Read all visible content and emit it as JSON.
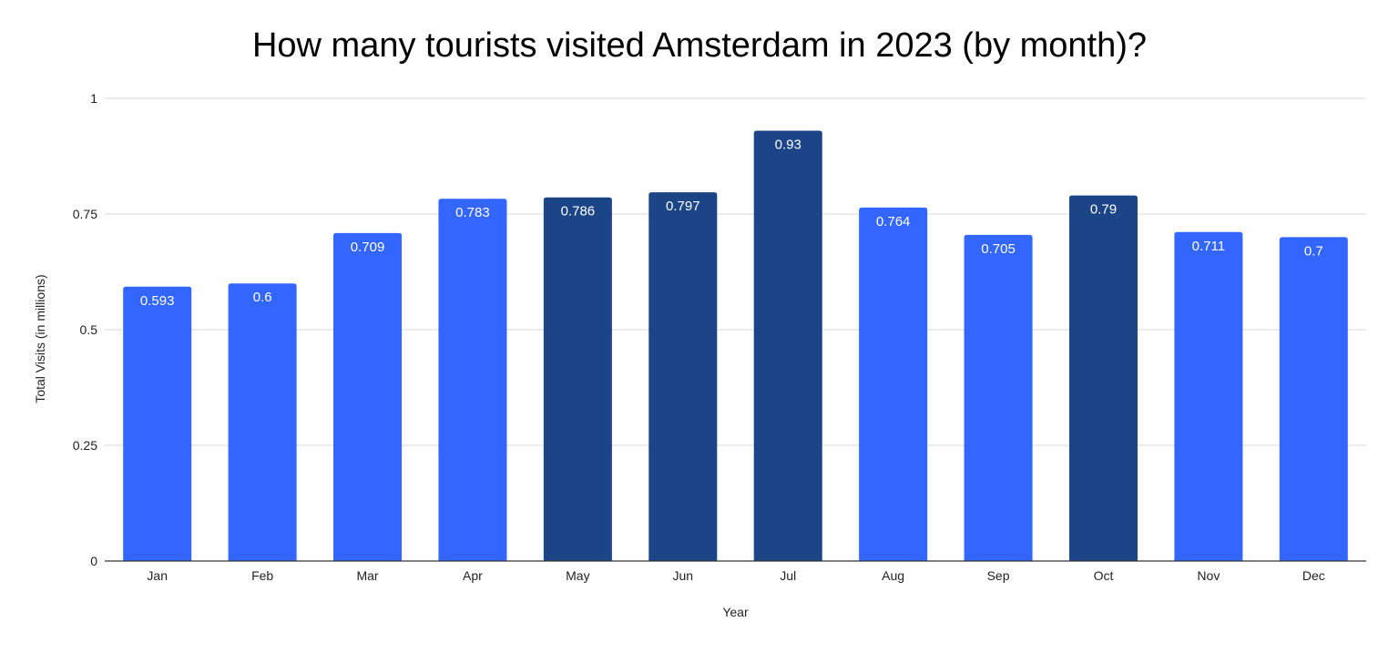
{
  "chart_data": {
    "type": "bar",
    "title": "How many tourists visited Amsterdam in 2023 (by month)?",
    "xlabel": "Year",
    "ylabel": "Total Visits (in millions)",
    "categories": [
      "Jan",
      "Feb",
      "Mar",
      "Apr",
      "May",
      "Jun",
      "Jul",
      "Aug",
      "Sep",
      "Oct",
      "Nov",
      "Dec"
    ],
    "values": [
      0.593,
      0.6,
      0.709,
      0.783,
      0.786,
      0.797,
      0.93,
      0.764,
      0.705,
      0.79,
      0.711,
      0.7
    ],
    "data_labels": [
      "0.593",
      "0.6",
      "0.709",
      "0.783",
      "0.786",
      "0.797",
      "0.93",
      "0.764",
      "0.705",
      "0.79",
      "0.711",
      "0.7"
    ],
    "bar_colors": [
      "#3366ff",
      "#3366ff",
      "#3366ff",
      "#3366ff",
      "#1c4587",
      "#1c4587",
      "#1c4587",
      "#3366ff",
      "#3366ff",
      "#1c4587",
      "#3366ff",
      "#3366ff"
    ],
    "ylim": [
      0,
      1
    ],
    "yticks": [
      0,
      0.25,
      0.5,
      0.75,
      1
    ],
    "ytick_labels": [
      "0",
      "0.25",
      "0.5",
      "0.75",
      "1"
    ],
    "grid": true,
    "legend": "none",
    "colors": {
      "light_bar": "#3366ff",
      "dark_bar": "#1c4587",
      "gridline": "#d9d9d9",
      "axis": "#333333"
    }
  }
}
